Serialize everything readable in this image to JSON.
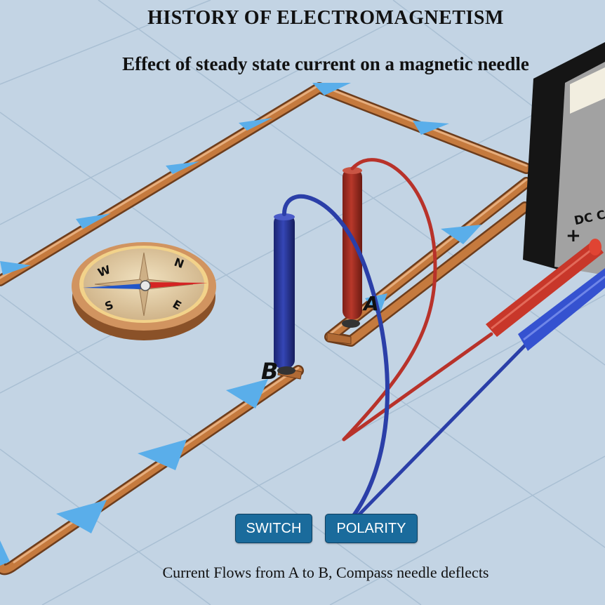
{
  "header": {
    "title": "HISTORY OF ELECTROMAGNETISM",
    "subtitle": "Effect of steady state current on a magnetic needle"
  },
  "controls": {
    "switch_label": "SWITCH",
    "polarity_label": "POLARITY"
  },
  "status": {
    "message": "Current Flows from A to B, Compass needle deflects"
  },
  "scene": {
    "terminal_a_label": "A",
    "terminal_b_label": "B",
    "power_supply_label": "DC C",
    "power_supply_plus": "+",
    "compass_letters": [
      "W",
      "N",
      "S",
      "E"
    ],
    "colors": {
      "background": "#c3d4e4",
      "copper_wire": "#c57a3e",
      "current_arrow": "#5aaeea",
      "red_lead": "#c03828",
      "blue_lead": "#2b3fa8",
      "button": "#1a6b9c"
    }
  }
}
